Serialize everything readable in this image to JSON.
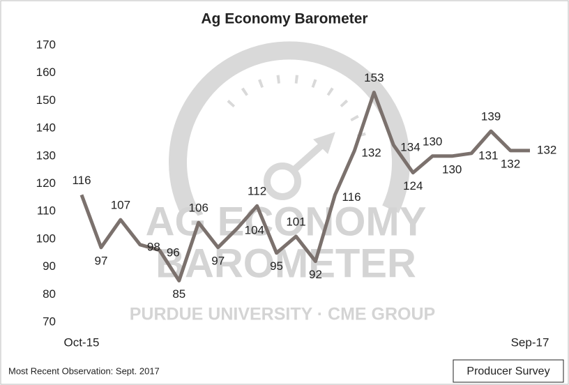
{
  "chart_data": {
    "type": "line",
    "title": "Ag Economy Barometer",
    "categories": [
      "Oct-15",
      null,
      null,
      null,
      null,
      null,
      null,
      null,
      null,
      null,
      null,
      null,
      null,
      null,
      null,
      null,
      null,
      null,
      null,
      null,
      null,
      null,
      null,
      "Sep-17"
    ],
    "series": [
      {
        "name": "Ag Economy Barometer",
        "color": "#7b716d",
        "values": [
          116,
          97,
          107,
          98,
          96,
          85,
          106,
          97,
          104,
          112,
          95,
          101,
          92,
          116,
          132,
          153,
          134,
          124,
          130,
          130,
          131,
          139,
          132,
          132
        ]
      }
    ],
    "ylim": [
      70,
      170
    ],
    "yticks": [
      70,
      80,
      90,
      100,
      110,
      120,
      130,
      140,
      150,
      160,
      170
    ],
    "grid": false
  },
  "watermark": {
    "line1": "AG ECONOMY",
    "line2": "BAROMETER",
    "line3": "PURDUE UNIVERSITY · CME GROUP"
  },
  "footer": {
    "note": "Most Recent Observation: Sept. 2017",
    "badge": "Producer Survey"
  }
}
